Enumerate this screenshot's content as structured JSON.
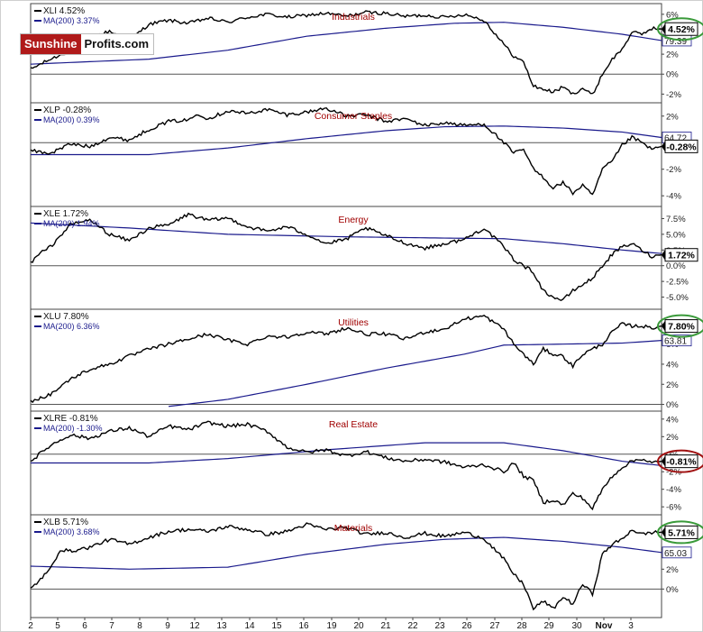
{
  "branding": {
    "part1": "Sunshine",
    "part2": "Profits.com"
  },
  "colors": {
    "price": "#000000",
    "ma": "#1a1a8c",
    "title": "#a00000",
    "green_circle": "#3a9a3a",
    "red_circle": "#a01010"
  },
  "chart_data": [
    {
      "type": "line",
      "ticker": "XLI",
      "title": "Industrials",
      "legend": [
        "XLI 4.52%",
        "MA(200) 3.37%"
      ],
      "y_ticks": [
        "6%",
        "4%",
        "2%",
        "0%",
        "-2%"
      ],
      "ylim": [
        -2.6,
        6.8
      ],
      "badge": "4.52%",
      "ma_badge": "79.39",
      "circle": "green",
      "price_last": 4.52,
      "ma_last": 3.37,
      "anchors": [
        [
          0,
          0.5
        ],
        [
          1,
          1.5
        ],
        [
          2,
          2.3
        ],
        [
          3,
          3.6
        ],
        [
          4,
          4.3
        ],
        [
          5,
          3.4
        ],
        [
          6,
          5.0
        ],
        [
          7,
          5.4
        ],
        [
          8,
          5.1
        ],
        [
          9,
          5.6
        ],
        [
          10,
          5.2
        ],
        [
          11,
          5.7
        ],
        [
          12,
          6.0
        ],
        [
          13,
          5.7
        ],
        [
          14,
          5.9
        ],
        [
          15,
          6.1
        ],
        [
          16,
          5.8
        ],
        [
          17,
          6.2
        ],
        [
          18,
          6.1
        ],
        [
          19,
          5.8
        ],
        [
          20,
          5.9
        ],
        [
          21,
          5.7
        ],
        [
          22,
          6.0
        ],
        [
          23,
          5.4
        ],
        [
          24,
          3.0
        ],
        [
          24.5,
          1.8
        ],
        [
          25,
          1.2
        ],
        [
          25.5,
          -1.2
        ],
        [
          26,
          -1.5
        ],
        [
          26.5,
          -1.8
        ],
        [
          27,
          -1.3
        ],
        [
          27.5,
          -2.0
        ],
        [
          28,
          -1.4
        ],
        [
          28.5,
          -2.1
        ],
        [
          29,
          0.0
        ],
        [
          29.5,
          1.5
        ],
        [
          30,
          2.5
        ],
        [
          30.5,
          4.2
        ],
        [
          31,
          4.0
        ],
        [
          31.5,
          4.6
        ],
        [
          32,
          4.52
        ]
      ],
      "ma": [
        [
          0,
          1.0
        ],
        [
          6,
          1.5
        ],
        [
          10,
          2.4
        ],
        [
          14,
          3.8
        ],
        [
          18,
          4.6
        ],
        [
          21.5,
          5.1
        ],
        [
          24,
          5.2
        ],
        [
          27,
          4.7
        ],
        [
          30,
          4.0
        ],
        [
          32,
          3.37
        ]
      ]
    },
    {
      "type": "line",
      "ticker": "XLP",
      "title": "Consumer Staples",
      "legend": [
        "XLP -0.28%",
        "MA(200) 0.39%"
      ],
      "y_ticks": [
        "2%",
        "0%",
        "-2%",
        "-4%"
      ],
      "ylim": [
        -4.6,
        2.8
      ],
      "badge": "-0.28%",
      "ma_badge": "64.72",
      "circle": "none",
      "price_last": -0.28,
      "ma_last": 0.39,
      "anchors": [
        [
          0,
          -0.6
        ],
        [
          1,
          -0.8
        ],
        [
          2,
          -0.1
        ],
        [
          3,
          -0.3
        ],
        [
          4,
          0.4
        ],
        [
          5,
          0.2
        ],
        [
          6,
          1.0
        ],
        [
          7,
          1.6
        ],
        [
          8,
          1.7
        ],
        [
          8.5,
          2.2
        ],
        [
          9,
          1.8
        ],
        [
          10,
          2.4
        ],
        [
          11,
          2.2
        ],
        [
          12,
          2.5
        ],
        [
          13,
          2.1
        ],
        [
          14,
          2.3
        ],
        [
          15,
          2.6
        ],
        [
          16,
          2.0
        ],
        [
          17,
          2.1
        ],
        [
          18,
          1.6
        ],
        [
          19,
          1.8
        ],
        [
          20,
          1.3
        ],
        [
          21,
          1.5
        ],
        [
          22,
          1.3
        ],
        [
          23,
          1.4
        ],
        [
          24,
          0.0
        ],
        [
          24.5,
          -0.8
        ],
        [
          25,
          -0.5
        ],
        [
          25.5,
          -2.0
        ],
        [
          26,
          -2.6
        ],
        [
          26.5,
          -3.4
        ],
        [
          27,
          -3.0
        ],
        [
          27.5,
          -3.8
        ],
        [
          28,
          -3.2
        ],
        [
          28.5,
          -4.0
        ],
        [
          29,
          -2.0
        ],
        [
          29.5,
          -1.4
        ],
        [
          30,
          -0.2
        ],
        [
          30.5,
          0.4
        ],
        [
          31,
          0.0
        ],
        [
          31.5,
          -0.5
        ],
        [
          32,
          -0.28
        ]
      ],
      "ma": [
        [
          0,
          -0.9
        ],
        [
          6,
          -0.9
        ],
        [
          10,
          -0.4
        ],
        [
          14,
          0.3
        ],
        [
          18,
          0.9
        ],
        [
          21,
          1.2
        ],
        [
          24,
          1.25
        ],
        [
          27,
          1.1
        ],
        [
          30,
          0.8
        ],
        [
          32,
          0.39
        ]
      ]
    },
    {
      "type": "line",
      "ticker": "XLE",
      "title": "Energy",
      "legend": [
        "XLE 1.72%",
        "MA(200) 1.94%"
      ],
      "y_ticks": [
        "7.5%",
        "5.0%",
        "2.5%",
        "0.0%",
        "-2.5%",
        "-5.0%"
      ],
      "ylim": [
        -6.5,
        9.0
      ],
      "badge": "1.72%",
      "ma_badge": "",
      "circle": "none",
      "price_last": 1.72,
      "ma_last": 1.94,
      "anchors": [
        [
          0,
          0.5
        ],
        [
          0.5,
          2.0
        ],
        [
          1,
          3.0
        ],
        [
          2,
          6.5
        ],
        [
          3,
          7.3
        ],
        [
          4,
          5.0
        ],
        [
          5,
          4.0
        ],
        [
          6,
          6.0
        ],
        [
          7,
          6.5
        ],
        [
          8,
          8.2
        ],
        [
          9,
          7.2
        ],
        [
          10,
          7.6
        ],
        [
          11,
          6.2
        ],
        [
          12,
          5.5
        ],
        [
          13,
          6.2
        ],
        [
          14,
          5.0
        ],
        [
          15,
          3.5
        ],
        [
          16,
          4.2
        ],
        [
          17,
          6.0
        ],
        [
          18,
          4.8
        ],
        [
          19,
          3.6
        ],
        [
          20,
          2.8
        ],
        [
          21,
          3.5
        ],
        [
          22,
          4.2
        ],
        [
          23,
          6.0
        ],
        [
          24,
          3.0
        ],
        [
          24.5,
          1.0
        ],
        [
          25,
          0.0
        ],
        [
          25.5,
          -1.0
        ],
        [
          26,
          -4.0
        ],
        [
          26.5,
          -5.0
        ],
        [
          27,
          -5.5
        ],
        [
          27.5,
          -4.0
        ],
        [
          28,
          -3.0
        ],
        [
          28.5,
          -2.0
        ],
        [
          29,
          0.0
        ],
        [
          29.5,
          1.8
        ],
        [
          30,
          3.0
        ],
        [
          30.5,
          3.5
        ],
        [
          31,
          2.5
        ],
        [
          31.5,
          1.5
        ],
        [
          32,
          1.72
        ]
      ],
      "ma": [
        [
          0,
          6.8
        ],
        [
          5,
          6.0
        ],
        [
          10,
          5.0
        ],
        [
          16,
          4.6
        ],
        [
          21,
          4.4
        ],
        [
          24,
          4.3
        ],
        [
          27,
          3.5
        ],
        [
          30,
          2.5
        ],
        [
          32,
          1.94
        ]
      ]
    },
    {
      "type": "line",
      "ticker": "XLU",
      "title": "Utilities",
      "legend": [
        "XLU 7.80%",
        "MA(200) 6.36%"
      ],
      "y_ticks": [
        "8%",
        "6%",
        "4%",
        "2%",
        "0%"
      ],
      "ylim": [
        -0.4,
        9.2
      ],
      "badge": "7.80%",
      "ma_badge": "63.81",
      "circle": "green",
      "price_last": 7.8,
      "ma_last": 6.36,
      "anchors": [
        [
          0,
          0.3
        ],
        [
          1,
          1.0
        ],
        [
          2,
          2.5
        ],
        [
          3,
          3.5
        ],
        [
          4,
          4.0
        ],
        [
          5,
          4.8
        ],
        [
          6,
          5.5
        ],
        [
          7,
          6.0
        ],
        [
          8,
          6.5
        ],
        [
          9,
          7.0
        ],
        [
          10,
          6.4
        ],
        [
          11,
          6.0
        ],
        [
          12,
          6.8
        ],
        [
          13,
          6.7
        ],
        [
          14,
          7.2
        ],
        [
          15,
          7.0
        ],
        [
          16,
          7.6
        ],
        [
          17,
          7.0
        ],
        [
          18,
          7.0
        ],
        [
          19,
          6.5
        ],
        [
          20,
          7.2
        ],
        [
          21,
          7.5
        ],
        [
          22,
          8.5
        ],
        [
          23,
          8.8
        ],
        [
          24,
          7.5
        ],
        [
          24.5,
          6.0
        ],
        [
          25,
          5.0
        ],
        [
          25.5,
          4.0
        ],
        [
          26,
          5.5
        ],
        [
          26.5,
          5.0
        ],
        [
          27,
          4.8
        ],
        [
          27.5,
          3.8
        ],
        [
          28,
          5.0
        ],
        [
          28.5,
          5.5
        ],
        [
          29,
          6.0
        ],
        [
          29.5,
          7.2
        ],
        [
          30,
          8.0
        ],
        [
          30.5,
          7.8
        ],
        [
          31,
          7.8
        ],
        [
          31.5,
          7.6
        ],
        [
          32,
          7.8
        ]
      ],
      "ma": [
        [
          7,
          -0.2
        ],
        [
          10,
          0.5
        ],
        [
          14,
          2.0
        ],
        [
          18,
          3.6
        ],
        [
          22,
          5.0
        ],
        [
          24,
          5.9
        ],
        [
          27,
          6.0
        ],
        [
          30,
          6.1
        ],
        [
          32,
          6.36
        ]
      ]
    },
    {
      "type": "line",
      "ticker": "XLRE",
      "title": "Real Estate",
      "legend": [
        "XLRE -0.81%",
        "MA(200) -1.30%"
      ],
      "y_ticks": [
        "4%",
        "2%",
        "0%",
        "-2%",
        "-4%",
        "-6%"
      ],
      "ylim": [
        -6.6,
        4.6
      ],
      "badge": "-0.81%",
      "ma_badge": "",
      "circle": "red",
      "price_last": -0.81,
      "ma_last": -1.3,
      "anchors": [
        [
          0,
          -0.8
        ],
        [
          1,
          1.0
        ],
        [
          2,
          2.2
        ],
        [
          3,
          1.8
        ],
        [
          4,
          2.6
        ],
        [
          5,
          3.0
        ],
        [
          6,
          2.0
        ],
        [
          7,
          3.2
        ],
        [
          8,
          2.8
        ],
        [
          9,
          3.6
        ],
        [
          10,
          3.2
        ],
        [
          11,
          3.4
        ],
        [
          12,
          2.6
        ],
        [
          13,
          0.8
        ],
        [
          14,
          0.2
        ],
        [
          15,
          0.5
        ],
        [
          16,
          -0.2
        ],
        [
          17,
          0.3
        ],
        [
          18,
          -0.4
        ],
        [
          19,
          -0.8
        ],
        [
          20,
          -0.6
        ],
        [
          21,
          -0.9
        ],
        [
          22,
          -1.5
        ],
        [
          23,
          -1.2
        ],
        [
          24,
          -2.0
        ],
        [
          24.5,
          -1.0
        ],
        [
          25,
          -2.5
        ],
        [
          25.5,
          -3.0
        ],
        [
          26,
          -5.5
        ],
        [
          26.5,
          -5.2
        ],
        [
          27,
          -5.8
        ],
        [
          27.5,
          -4.5
        ],
        [
          28,
          -5.0
        ],
        [
          28.5,
          -6.2
        ],
        [
          29,
          -4.0
        ],
        [
          29.5,
          -2.5
        ],
        [
          30,
          -1.5
        ],
        [
          30.5,
          -0.8
        ],
        [
          31,
          -0.5
        ],
        [
          31.5,
          -1.0
        ],
        [
          32,
          -0.81
        ]
      ],
      "ma": [
        [
          0,
          -1.0
        ],
        [
          6,
          -1.0
        ],
        [
          10,
          -0.5
        ],
        [
          15,
          0.5
        ],
        [
          20,
          1.3
        ],
        [
          24,
          1.3
        ],
        [
          27,
          0.4
        ],
        [
          30,
          -0.8
        ],
        [
          32,
          -1.3
        ]
      ]
    },
    {
      "type": "line",
      "ticker": "XLB",
      "title": "Materials",
      "legend": [
        "XLB 5.71%",
        "MA(200) 3.68%"
      ],
      "y_ticks": [
        "4%",
        "2%",
        "0%"
      ],
      "ylim": [
        -2.6,
        7.2
      ],
      "badge": "5.71%",
      "ma_badge": "65.03",
      "circle": "green",
      "price_last": 5.71,
      "ma_last": 3.68,
      "anchors": [
        [
          0,
          0.0
        ],
        [
          0.5,
          1.0
        ],
        [
          1,
          2.0
        ],
        [
          1.5,
          4.0
        ],
        [
          2,
          3.8
        ],
        [
          3,
          4.2
        ],
        [
          4,
          5.0
        ],
        [
          5,
          4.5
        ],
        [
          6,
          5.2
        ],
        [
          7,
          5.8
        ],
        [
          8,
          6.0
        ],
        [
          9,
          5.8
        ],
        [
          10,
          6.3
        ],
        [
          11,
          6.0
        ],
        [
          12,
          5.5
        ],
        [
          13,
          5.8
        ],
        [
          14,
          6.5
        ],
        [
          15,
          6.0
        ],
        [
          16,
          6.2
        ],
        [
          17,
          5.5
        ],
        [
          18,
          5.7
        ],
        [
          19,
          5.2
        ],
        [
          20,
          5.6
        ],
        [
          21,
          5.3
        ],
        [
          22,
          5.7
        ],
        [
          23,
          5.1
        ],
        [
          24,
          3.0
        ],
        [
          24.5,
          1.5
        ],
        [
          25,
          0.5
        ],
        [
          25.5,
          -2.0
        ],
        [
          26,
          -1.2
        ],
        [
          26.5,
          -2.0
        ],
        [
          27,
          -0.8
        ],
        [
          27.5,
          -1.5
        ],
        [
          28,
          0.5
        ],
        [
          28.5,
          -0.5
        ],
        [
          29,
          3.5
        ],
        [
          29.5,
          4.5
        ],
        [
          30,
          5.0
        ],
        [
          30.5,
          6.0
        ],
        [
          31,
          5.5
        ],
        [
          31.5,
          5.7
        ],
        [
          32,
          5.71
        ]
      ],
      "ma": [
        [
          0,
          2.3
        ],
        [
          5,
          2.0
        ],
        [
          10,
          2.2
        ],
        [
          14,
          3.5
        ],
        [
          18,
          4.5
        ],
        [
          21,
          5.0
        ],
        [
          24,
          5.2
        ],
        [
          27,
          4.8
        ],
        [
          30,
          4.2
        ],
        [
          32,
          3.68
        ]
      ]
    }
  ],
  "x_axis": {
    "labels": [
      "2",
      "5",
      "6",
      "7",
      "8",
      "9",
      "12",
      "13",
      "14",
      "15",
      "16",
      "19",
      "20",
      "21",
      "22",
      "23",
      "26",
      "27",
      "28",
      "29",
      "30",
      "Nov",
      "3"
    ],
    "positions": [
      0,
      1,
      2,
      3,
      4,
      5,
      6,
      7,
      8,
      9,
      10,
      11,
      12,
      13,
      14,
      15,
      16,
      17,
      18,
      19,
      20,
      21,
      22
    ],
    "domain": [
      0,
      32
    ]
  }
}
